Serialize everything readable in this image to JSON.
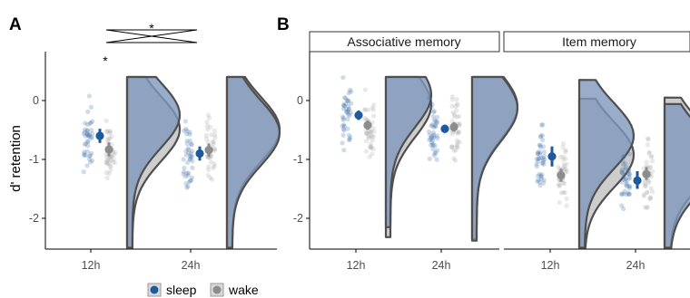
{
  "colors": {
    "sleep": "#1d5a9b",
    "wake": "#8c8c8c",
    "sleep_point": "#3f6fa8",
    "wake_point": "#a8a8a8",
    "sleep_fill": "#7f97bd",
    "wake_fill": "#c8c8c8",
    "outline": "#4f4f4f"
  },
  "legend": {
    "sleep_label": "sleep",
    "wake_label": "wake",
    "sleep_key_icon": "dot-in-box-icon",
    "wake_key_icon": "dot-in-box-icon"
  },
  "chart_data": [
    {
      "panel": "A",
      "type": "raincloud",
      "xlabel": "",
      "ylabel": "d' retention",
      "categories": [
        "12h",
        "24h"
      ],
      "ylim": [
        -2.55,
        0.8
      ],
      "yticks": [
        0,
        -1,
        -2
      ],
      "grid": false,
      "significance": [
        {
          "label": "*",
          "type": "crossed-brackets",
          "note_text": "*"
        },
        {
          "label": "*",
          "type": "point",
          "category": "12h"
        }
      ],
      "series": [
        {
          "name": "sleep",
          "means": [
            -0.6,
            -0.9
          ],
          "ci": [
            [
              -0.72,
              -0.48
            ],
            [
              -1.02,
              -0.78
            ]
          ]
        },
        {
          "name": "wake",
          "means": [
            -0.83,
            -0.84
          ],
          "ci": [
            [
              -0.95,
              -0.71
            ],
            [
              -0.95,
              -0.73
            ]
          ]
        }
      ]
    },
    {
      "panel": "B",
      "strip": "Associative memory",
      "type": "raincloud",
      "categories": [
        "12h",
        "24h"
      ],
      "ylim": [
        -2.55,
        0.8
      ],
      "yticks": [
        0,
        -1,
        -2
      ],
      "grid": false,
      "series": [
        {
          "name": "sleep",
          "means": [
            -0.25,
            -0.48
          ],
          "ci": [
            [
              -0.33,
              -0.17
            ],
            [
              -0.55,
              -0.41
            ]
          ]
        },
        {
          "name": "wake",
          "means": [
            -0.42,
            -0.45
          ],
          "ci": [
            [
              -0.5,
              -0.34
            ],
            [
              -0.53,
              -0.37
            ]
          ]
        }
      ]
    },
    {
      "panel": "B",
      "strip": "Item memory",
      "type": "raincloud",
      "categories": [
        "12h",
        "24h"
      ],
      "ylim": [
        -2.55,
        0.8
      ],
      "yticks": [
        0,
        -1,
        -2
      ],
      "grid": false,
      "series": [
        {
          "name": "sleep",
          "means": [
            -0.95,
            -1.36
          ],
          "ci": [
            [
              -1.12,
              -0.78
            ],
            [
              -1.5,
              -1.2
            ]
          ]
        },
        {
          "name": "wake",
          "means": [
            -1.27,
            -1.25
          ],
          "ci": [
            [
              -1.38,
              -1.16
            ],
            [
              -1.35,
              -1.13
            ]
          ]
        }
      ]
    }
  ]
}
